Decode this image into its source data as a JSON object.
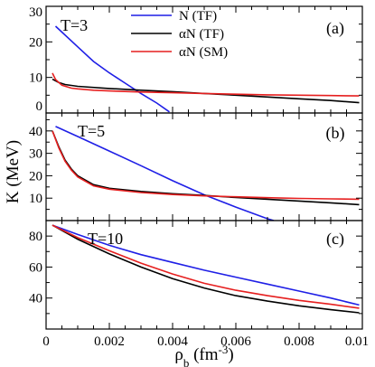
{
  "chart_data": [
    {
      "type": "line",
      "panel_label": "(a)",
      "annotation": "T=3",
      "xlim": [
        0,
        0.01
      ],
      "ylim": [
        0,
        30
      ],
      "yticks": [
        "0",
        "10",
        "20",
        "30"
      ],
      "legend": {
        "placement": "top-center",
        "entries": [
          {
            "label": "N (TF)",
            "color": "#1f1fe6"
          },
          {
            "label": "αN (TF)",
            "color": "#000000"
          },
          {
            "label": "αN (SM)",
            "color": "#e61f1f"
          }
        ]
      },
      "series": [
        {
          "name": "N (TF)",
          "color": "#1f1fe6",
          "x": [
            0.0003,
            0.001,
            0.0015,
            0.002,
            0.0025,
            0.003,
            0.0035,
            0.0039
          ],
          "y": [
            24.4,
            18.6,
            14.5,
            11.3,
            8.4,
            5.5,
            2.8,
            0.3
          ]
        },
        {
          "name": "αN (TF)",
          "color": "#000000",
          "x": [
            0.0002,
            0.0004,
            0.0006,
            0.001,
            0.002,
            0.003,
            0.004,
            0.005,
            0.006,
            0.007,
            0.008,
            0.009,
            0.0099
          ],
          "y": [
            9.5,
            8.6,
            8.0,
            7.5,
            6.9,
            6.4,
            6.0,
            5.5,
            5.0,
            4.5,
            4.0,
            3.5,
            2.9
          ]
        },
        {
          "name": "αN (SM)",
          "color": "#e61f1f",
          "x": [
            0.0002,
            0.0003,
            0.0005,
            0.0008,
            0.001,
            0.0015,
            0.002,
            0.003,
            0.004,
            0.005,
            0.006,
            0.007,
            0.008,
            0.009,
            0.0099
          ],
          "y": [
            11.2,
            9.4,
            7.8,
            7.0,
            6.8,
            6.4,
            6.2,
            5.9,
            5.7,
            5.5,
            5.3,
            5.1,
            5.0,
            4.9,
            4.8
          ]
        }
      ]
    },
    {
      "type": "line",
      "panel_label": "(b)",
      "annotation": "T=5",
      "xlim": [
        0,
        0.01
      ],
      "ylim": [
        0,
        48
      ],
      "yticks": [
        "10",
        "20",
        "30",
        "40"
      ],
      "ytick_values": [
        10,
        20,
        30,
        40
      ],
      "series": [
        {
          "name": "N (TF)",
          "color": "#1f1fe6",
          "x": [
            0.0003,
            0.001,
            0.002,
            0.003,
            0.004,
            0.005,
            0.006,
            0.007,
            0.0072
          ],
          "y": [
            42.0,
            37.5,
            31.0,
            24.5,
            17.8,
            11.5,
            6.0,
            0.8,
            0.0
          ]
        },
        {
          "name": "αN (TF)",
          "color": "#000000",
          "x": [
            0.0002,
            0.0004,
            0.0006,
            0.0008,
            0.001,
            0.0015,
            0.002,
            0.003,
            0.004,
            0.005,
            0.006,
            0.007,
            0.008,
            0.009,
            0.0099
          ],
          "y": [
            40.0,
            33.0,
            27.0,
            23.0,
            20.0,
            16.0,
            14.4,
            13.0,
            12.0,
            11.2,
            10.3,
            9.5,
            8.7,
            7.9,
            7.1
          ]
        },
        {
          "name": "αN (SM)",
          "color": "#e61f1f",
          "x": [
            0.0002,
            0.0004,
            0.0006,
            0.0008,
            0.001,
            0.0015,
            0.002,
            0.003,
            0.004,
            0.005,
            0.006,
            0.007,
            0.008,
            0.009,
            0.0099
          ],
          "y": [
            40.0,
            32.5,
            26.5,
            22.5,
            19.5,
            15.5,
            14.0,
            12.5,
            11.6,
            11.0,
            10.6,
            10.2,
            9.9,
            9.7,
            9.5
          ]
        }
      ]
    },
    {
      "type": "line",
      "panel_label": "(c)",
      "annotation": "T=10",
      "xlim": [
        0,
        0.01
      ],
      "ylim": [
        20,
        90
      ],
      "yticks": [
        "40",
        "60",
        "80"
      ],
      "ytick_values": [
        40,
        60,
        80
      ],
      "xticks": [
        "0",
        "0.002",
        "0.004",
        "0.006",
        "0.008",
        "0.01"
      ],
      "xlabel": "ρ",
      "xlabel_sub": "b",
      "xlabel_units": " (fm",
      "xlabel_sup": "-3",
      "xlabel_close": ")",
      "series": [
        {
          "name": "N (TF)",
          "color": "#1f1fe6",
          "x": [
            0.0002,
            0.001,
            0.002,
            0.003,
            0.004,
            0.005,
            0.006,
            0.007,
            0.008,
            0.009,
            0.0099
          ],
          "y": [
            87.0,
            81.0,
            74.0,
            68.0,
            63.0,
            58.0,
            53.5,
            49.0,
            44.5,
            40.0,
            35.5
          ]
        },
        {
          "name": "αN (TF)",
          "color": "#000000",
          "x": [
            0.0002,
            0.001,
            0.002,
            0.003,
            0.004,
            0.005,
            0.006,
            0.007,
            0.008,
            0.009,
            0.0099
          ],
          "y": [
            87.0,
            78.0,
            68.5,
            60.0,
            52.5,
            46.5,
            41.5,
            38.0,
            35.0,
            32.5,
            30.5
          ]
        },
        {
          "name": "αN (SM)",
          "color": "#e61f1f",
          "x": [
            0.0002,
            0.001,
            0.002,
            0.003,
            0.004,
            0.005,
            0.006,
            0.007,
            0.008,
            0.009,
            0.0099
          ],
          "y": [
            87.0,
            79.0,
            70.5,
            62.5,
            55.5,
            49.5,
            45.0,
            41.5,
            38.5,
            36.0,
            33.5
          ]
        }
      ]
    }
  ],
  "ylabel": "K (MeV)"
}
